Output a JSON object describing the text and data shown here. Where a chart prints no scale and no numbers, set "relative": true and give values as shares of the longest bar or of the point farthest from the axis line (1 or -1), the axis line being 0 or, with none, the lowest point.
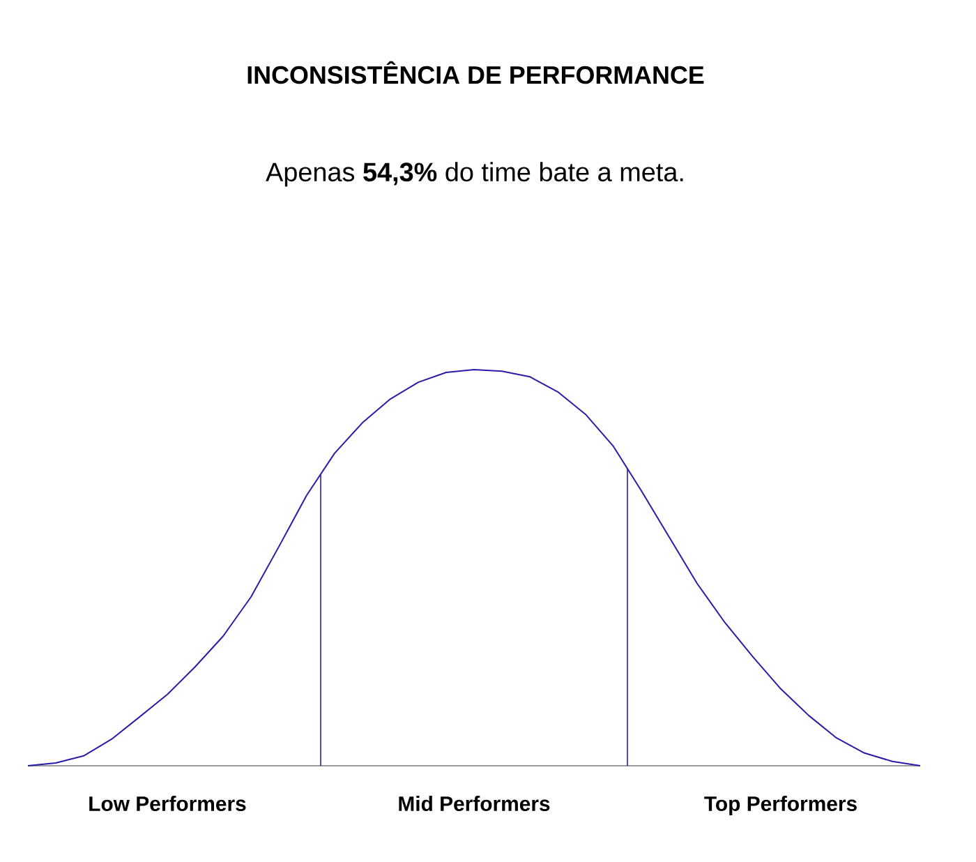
{
  "chart_data": {
    "type": "line",
    "title": "INCONSISTÊNCIA DE PERFORMANCE",
    "subtitle": "Apenas **54,3%** do time bate a meta.",
    "relative": true,
    "categories": [
      null,
      null,
      null,
      null,
      null,
      "Low Performers",
      null,
      null,
      null,
      null,
      null,
      null,
      null,
      null,
      null,
      null,
      "Mid Performers",
      null,
      null,
      null,
      null,
      null,
      null,
      null,
      null,
      null,
      null,
      "Top Performers",
      null,
      null,
      null,
      null,
      null
    ],
    "series": [
      {
        "color": "#2a1aa8",
        "values": [
          0,
          0.007,
          0.025,
          0.067,
          0.123,
          0.18,
          0.25,
          0.327,
          0.426,
          0.553,
          0.683,
          0.789,
          0.866,
          0.926,
          0.968,
          0.993,
          1,
          0.996,
          0.982,
          0.944,
          0.887,
          0.806,
          0.694,
          0.577,
          0.46,
          0.361,
          0.275,
          0.194,
          0.127,
          0.07,
          0.032,
          0.011,
          0
        ]
      }
    ],
    "marker": "none",
    "line_style": "solid"
  }
}
